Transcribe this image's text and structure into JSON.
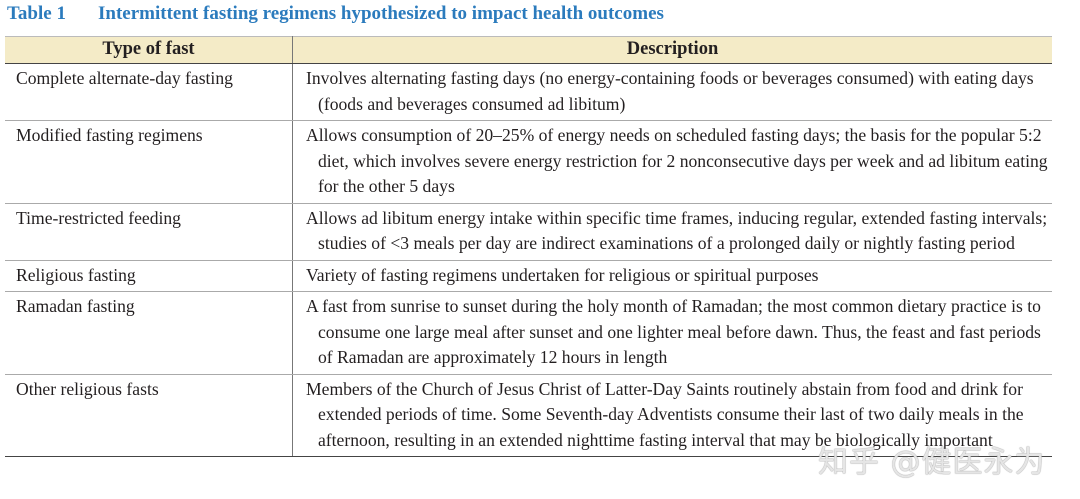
{
  "table": {
    "label": "Table 1",
    "caption": "Intermittent fasting regimens hypothesized to impact health outcomes",
    "headers": [
      "Type of fast",
      "Description"
    ],
    "rows": [
      {
        "type": "Complete alternate-day fasting",
        "description": "Involves alternating fasting days (no energy-containing foods or beverages consumed) with eating days (foods and beverages consumed ad libitum)"
      },
      {
        "type": "Modified fasting regimens",
        "description": "Allows consumption of 20–25% of energy needs on scheduled fasting days; the basis for the popular 5:2 diet, which involves severe energy restriction for 2 nonconsecutive days per week and ad libitum eating for the other 5 days"
      },
      {
        "type": "Time-restricted feeding",
        "description": "Allows ad libitum energy intake within specific time frames, inducing regular, extended fasting intervals; studies of <3 meals per day are indirect examinations of a prolonged daily or nightly fasting period"
      },
      {
        "type": "Religious fasting",
        "description": "Variety of fasting regimens undertaken for religious or spiritual purposes"
      },
      {
        "type": "Ramadan fasting",
        "description": "A fast from sunrise to sunset during the holy month of Ramadan; the most common dietary practice is to consume one large meal after sunset and one lighter meal before dawn. Thus, the feast and fast periods of Ramadan are approximately 12 hours in length"
      },
      {
        "type": "Other religious fasts",
        "description": "Members of the Church of Jesus Christ of Latter-Day Saints routinely abstain from food and drink for extended periods of time. Some Seventh-day Adventists consume their last of two daily meals in the afternoon, resulting in an extended nighttime fasting interval that may be biologically important"
      }
    ]
  },
  "watermark": "知乎 @健医永为",
  "colors": {
    "title": "#2b7bbd",
    "header_bg": "#f4ebc7"
  }
}
